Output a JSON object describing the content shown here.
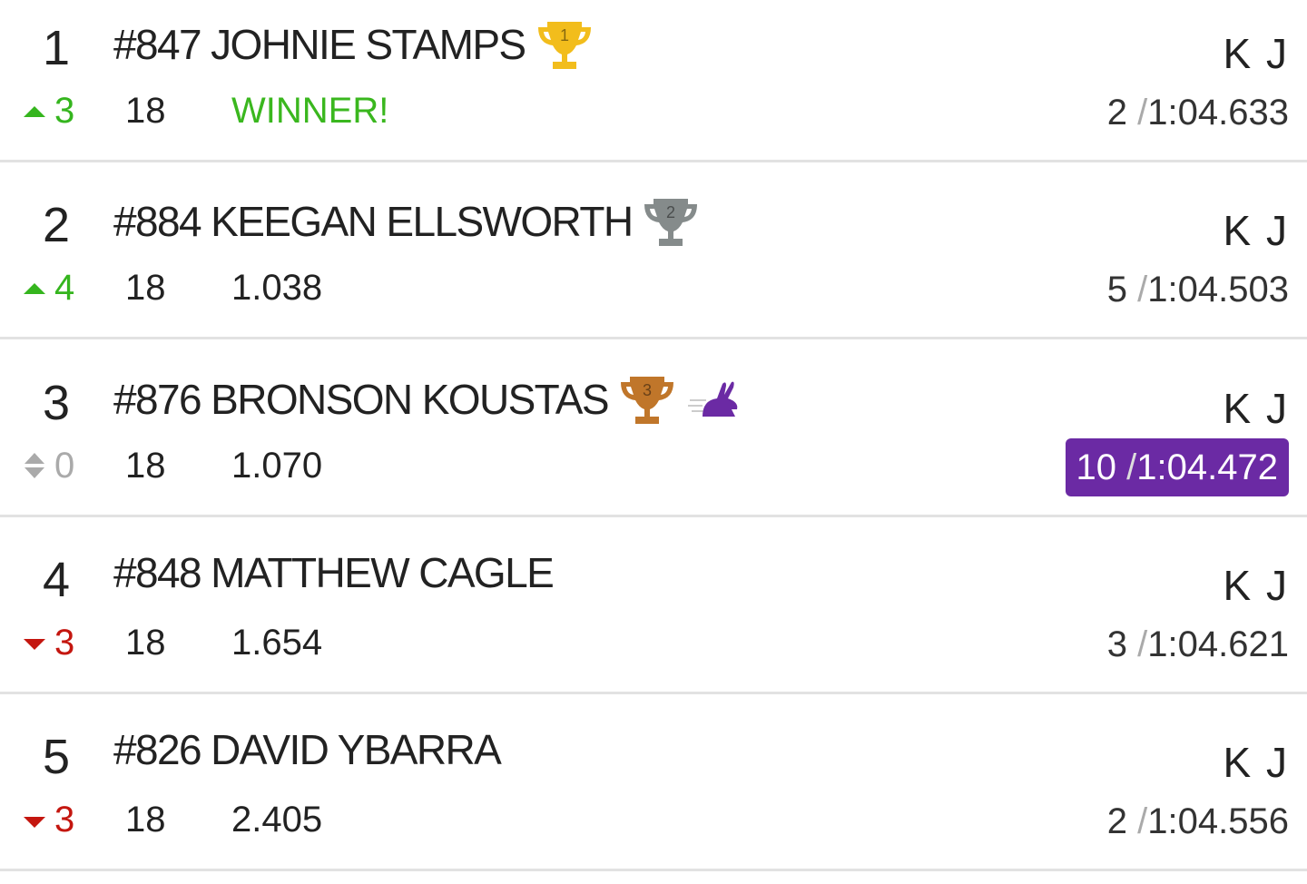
{
  "lap_separator": "/",
  "rows": [
    {
      "position": "1",
      "number": "#847",
      "name": "JOHNIE STAMPS",
      "trophy": "1",
      "trophy_color": "#f2bd1c",
      "trend": "up",
      "change": "3",
      "laps": "18",
      "gap": "WINNER!",
      "tag": "K J",
      "best_lap": "2",
      "time": "1:04.633",
      "fastest": false
    },
    {
      "position": "2",
      "number": "#884",
      "name": "KEEGAN ELLSWORTH",
      "trophy": "2",
      "trophy_color": "#858b8b",
      "trend": "up",
      "change": "4",
      "laps": "18",
      "gap": "1.038",
      "tag": "K J",
      "best_lap": "5",
      "time": "1:04.503",
      "fastest": false
    },
    {
      "position": "3",
      "number": "#876",
      "name": "BRONSON KOUSTAS",
      "trophy": "3",
      "trophy_color": "#c0762a",
      "trend": "none",
      "change": "0",
      "laps": "18",
      "gap": "1.070",
      "tag": "K J",
      "best_lap": "10",
      "time": "1:04.472",
      "fastest": true
    },
    {
      "position": "4",
      "number": "#848",
      "name": "MATTHEW CAGLE",
      "trend": "down",
      "change": "3",
      "laps": "18",
      "gap": "1.654",
      "tag": "K J",
      "best_lap": "3",
      "time": "1:04.621",
      "fastest": false
    },
    {
      "position": "5",
      "number": "#826",
      "name": "DAVID YBARRA",
      "trend": "down",
      "change": "3",
      "laps": "18",
      "gap": "2.405",
      "tag": "K J",
      "best_lap": "2",
      "time": "1:04.556",
      "fastest": false
    }
  ]
}
